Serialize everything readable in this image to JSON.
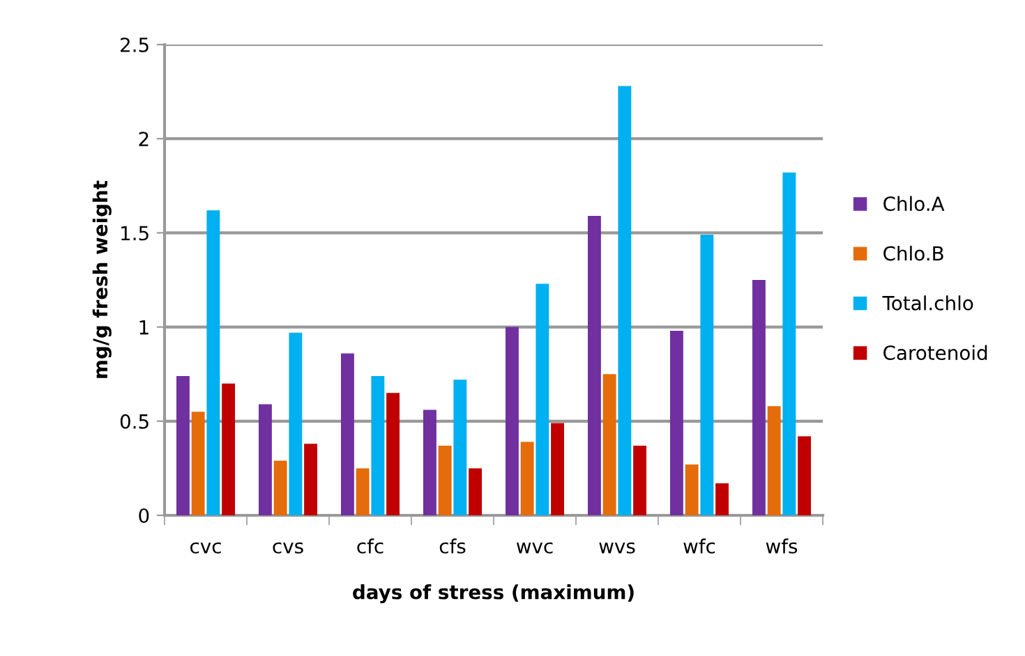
{
  "chart_data": {
    "type": "bar",
    "xlabel": "days of stress (maximum)",
    "ylabel": "mg/g fresh weight",
    "categories": [
      "cvc",
      "cvs",
      "cfc",
      "cfs",
      "wvc",
      "wvs",
      "wfc",
      "wfs"
    ],
    "series": [
      {
        "name": "Chlo.A",
        "color": "#7030a0",
        "values": [
          0.74,
          0.59,
          0.86,
          0.56,
          1.0,
          1.59,
          0.98,
          1.25
        ]
      },
      {
        "name": "Chlo.B",
        "color": "#e46c0a",
        "values": [
          0.55,
          0.29,
          0.25,
          0.37,
          0.39,
          0.75,
          0.27,
          0.58
        ]
      },
      {
        "name": "Total.chlo",
        "color": "#00b0f0",
        "values": [
          1.62,
          0.97,
          0.74,
          0.72,
          1.23,
          2.28,
          1.49,
          1.82
        ]
      },
      {
        "name": "Carotenoid",
        "color": "#c00000",
        "values": [
          0.7,
          0.38,
          0.65,
          0.25,
          0.49,
          0.37,
          0.17,
          0.42
        ]
      }
    ],
    "ylim": [
      0,
      2.5
    ],
    "yticks": [
      0,
      0.5,
      1,
      1.5,
      2,
      2.5
    ],
    "grid": "y",
    "legend": "right"
  }
}
